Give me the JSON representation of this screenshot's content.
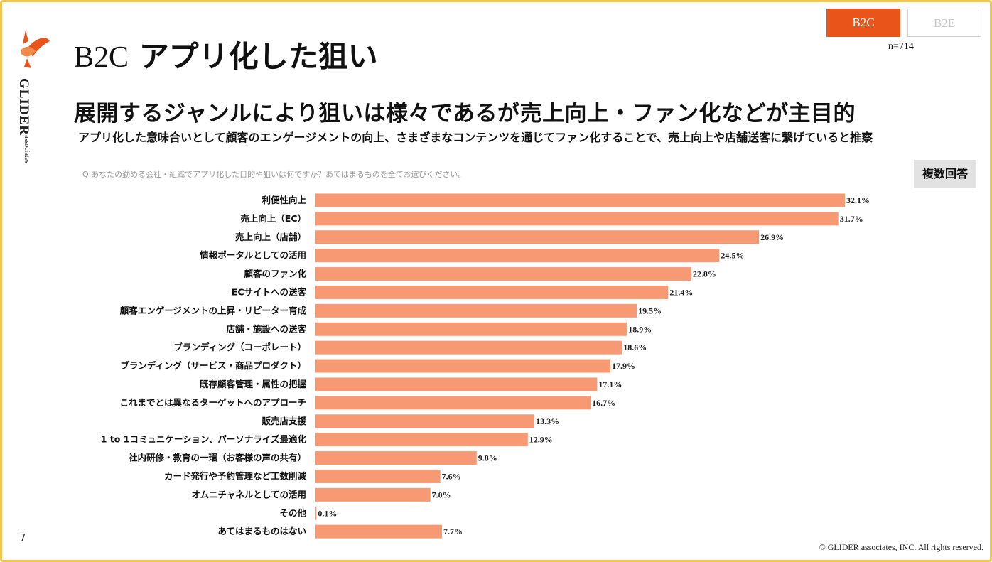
{
  "header": {
    "title_code": "B2C",
    "title_text": "アプリ化した狙い",
    "tabs": [
      {
        "label": "B2C",
        "active": true
      },
      {
        "label": "B2E",
        "active": false
      }
    ],
    "sample_size": "n=714"
  },
  "logo": {
    "word": "GLIDER",
    "sub": "associates"
  },
  "headline": "展開するジャンルにより狙いは様々であるが売上向上・ファン化などが主目的",
  "subline": "アプリ化した意味合いとして顧客のエンゲージメントの向上、さまざまなコンテンツを通じてファン化することで、売上向上や店舗送客に繋げていると推察",
  "question": "Q あなたの勤める会社・組織でアプリ化した目的や狙いは何ですか？あてはまるものを全てお選びください。",
  "badge": "複数回答",
  "footer": {
    "page_number": "7",
    "copyright": "© GLIDER associates, INC. All rights reserved."
  },
  "colors": {
    "bar": "#f79a74",
    "accent": "#e8541a",
    "frame": "#f2c94c"
  },
  "chart_data": {
    "type": "bar",
    "orientation": "horizontal",
    "unit": "%",
    "xlim": [
      0,
      35
    ],
    "categories": [
      "利便性向上",
      "売上向上（EC）",
      "売上向上（店舗）",
      "情報ポータルとしての活用",
      "顧客のファン化",
      "ECサイトへの送客",
      "顧客エンゲージメントの上昇・リピーター育成",
      "店舗・施設への送客",
      "ブランディング（コーポレート）",
      "ブランディング（サービス・商品プロダクト）",
      "既存顧客管理・属性の把握",
      "これまでとは異なるターゲットへのアプローチ",
      "販売店支援",
      "1 to 1コミュニケーション、パーソナライズ最適化",
      "社内研修・教育の一環（お客様の声の共有）",
      "カード発行や予約管理など工数削減",
      "オムニチャネルとしての活用",
      "その他",
      "あてはまるものはない"
    ],
    "values": [
      32.1,
      31.7,
      26.9,
      24.5,
      22.8,
      21.4,
      19.5,
      18.9,
      18.6,
      17.9,
      17.1,
      16.7,
      13.3,
      12.9,
      9.8,
      7.6,
      7.0,
      0.1,
      7.7
    ],
    "labels": [
      "32.1%",
      "31.7%",
      "26.9%",
      "24.5%",
      "22.8%",
      "21.4%",
      "19.5%",
      "18.9%",
      "18.6%",
      "17.9%",
      "17.1%",
      "16.7%",
      "13.3%",
      "12.9%",
      "9.8%",
      "7.6%",
      "7.0%",
      "0.1%",
      "7.7%"
    ]
  }
}
